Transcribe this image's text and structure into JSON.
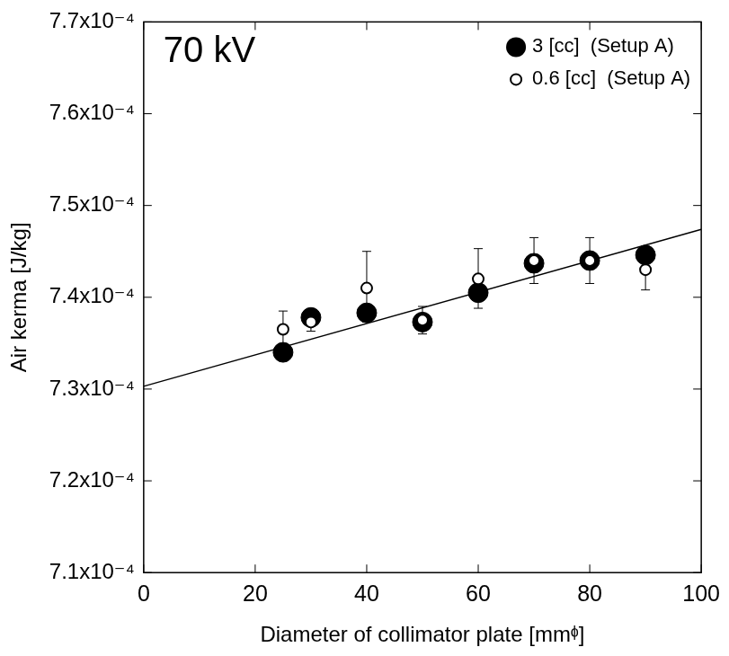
{
  "chart_data": {
    "type": "scatter",
    "title": "70 kV",
    "x_label": "Diameter of collimator plate [mmᶲ]",
    "y_label": "Air kerma [J/kg]",
    "xlim": [
      0,
      100
    ],
    "xticks": [
      0,
      20,
      40,
      60,
      80,
      100
    ],
    "ylim": [
      0.00071,
      0.00077
    ],
    "yticks": [
      {
        "value": 0.00071,
        "label": "7.1x10⁻⁴"
      },
      {
        "value": 0.00072,
        "label": "7.2x10⁻⁴"
      },
      {
        "value": 0.00073,
        "label": "7.3x10⁻⁴"
      },
      {
        "value": 0.00074,
        "label": "7.4x10⁻⁴"
      },
      {
        "value": 0.00075,
        "label": "7.5x10⁻⁴"
      },
      {
        "value": 0.00076,
        "label": "7.6x10⁻⁴"
      },
      {
        "value": 0.00077,
        "label": "7.7x10⁻⁴"
      }
    ],
    "grid": false,
    "legend": "upper right",
    "series": [
      {
        "name": "3 [cc]  (Setup A)",
        "color": "#000000",
        "marker": "filled_circle",
        "x": [
          25,
          30,
          40,
          50,
          60,
          70,
          80,
          90
        ],
        "values": [
          0.000734,
          0.0007378,
          0.0007383,
          0.0007373,
          0.0007405,
          0.0007437,
          0.000744,
          0.0007446
        ]
      },
      {
        "name": "0.6 [cc]  (Setup A)",
        "color": "#000000",
        "marker": "open_circle",
        "x": [
          25,
          30,
          40,
          50,
          60,
          70,
          80,
          90
        ],
        "values": [
          0.0007365,
          0.0007373,
          0.000741,
          0.0007375,
          0.000742,
          0.000744,
          0.000744,
          0.000743
        ],
        "error_minus": [
          2e-06,
          1e-06,
          3.7e-06,
          1.5e-06,
          3.2e-06,
          2.5e-06,
          2.5e-06,
          2.2e-06
        ],
        "error_plus": [
          2e-06,
          1e-06,
          4e-06,
          1.5e-06,
          3.3e-06,
          2.5e-06,
          2.5e-06,
          1.5e-06
        ]
      },
      {
        "type": "line",
        "color": "#000000",
        "line_style": "solid",
        "x": [
          0,
          100
        ],
        "values": [
          0.0007303,
          0.0007474
        ]
      }
    ]
  }
}
